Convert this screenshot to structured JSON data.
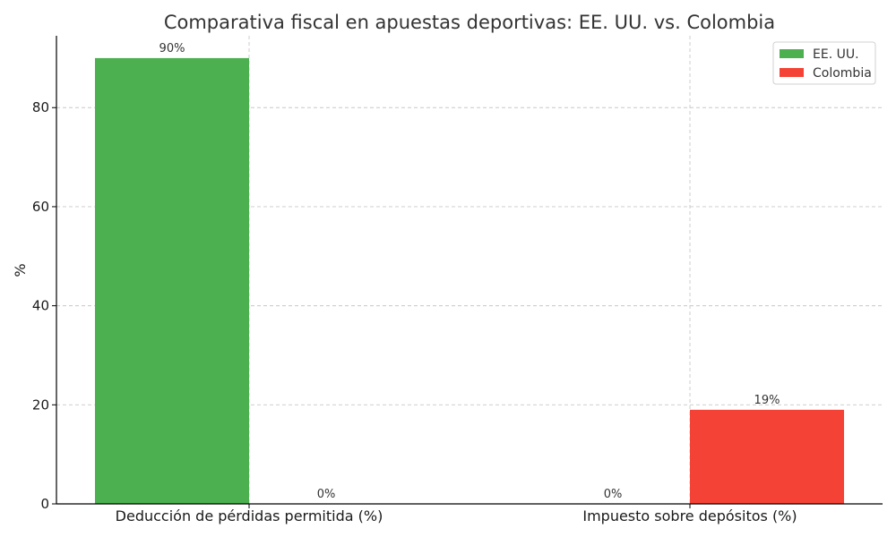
{
  "chart_data": {
    "type": "bar",
    "title": "Comparativa fiscal en apuestas deportivas: EE. UU. vs. Colombia",
    "xlabel": "",
    "ylabel": "%",
    "categories": [
      "Deducción de pérdidas permitida (%)",
      "Impuesto sobre depósitos (%)"
    ],
    "series": [
      {
        "name": "EE. UU.",
        "values": [
          90,
          0
        ],
        "labels": [
          "90%",
          "0%"
        ],
        "color": "#4caf50"
      },
      {
        "name": "Colombia",
        "values": [
          0,
          19
        ],
        "labels": [
          "0%",
          "19%"
        ],
        "color": "#f44336"
      }
    ],
    "ylim": [
      0,
      94.5
    ],
    "yticks": [
      0,
      20,
      40,
      60,
      80
    ],
    "ytick_labels": [
      "0",
      "20",
      "40",
      "60",
      "80"
    ],
    "grid": true,
    "legend_position": "top-right"
  }
}
